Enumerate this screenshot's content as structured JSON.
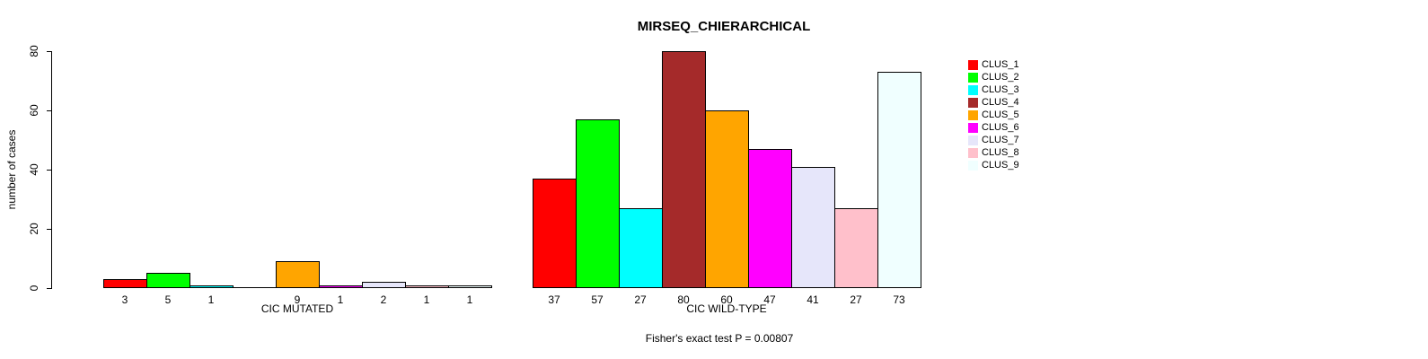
{
  "title": "MIRSEQ_CHIERARCHICAL",
  "annotation": "Fisher's exact test P = 0.00807",
  "y_axis": {
    "label": "number of cases"
  },
  "legend": {
    "items": [
      {
        "label": "CLUS_1",
        "color": "#FF0000"
      },
      {
        "label": "CLUS_2",
        "color": "#00FF00"
      },
      {
        "label": "CLUS_3",
        "color": "#00FFFF"
      },
      {
        "label": "CLUS_4",
        "color": "#A52A2A"
      },
      {
        "label": "CLUS_5",
        "color": "#FFA500"
      },
      {
        "label": "CLUS_6",
        "color": "#FF00FF"
      },
      {
        "label": "CLUS_7",
        "color": "#E6E6FA"
      },
      {
        "label": "CLUS_8",
        "color": "#FFC0CB"
      },
      {
        "label": "CLUS_9",
        "color": "#F0FFFF"
      }
    ]
  },
  "chart_data": {
    "type": "bar",
    "title": "MIRSEQ_CHIERARCHICAL",
    "ylabel": "number of cases",
    "ylim": [
      0,
      80
    ],
    "yticks": [
      0,
      20,
      40,
      60,
      80
    ],
    "grid": false,
    "legend_position": "right",
    "series_labels": [
      "CLUS_1",
      "CLUS_2",
      "CLUS_3",
      "CLUS_4",
      "CLUS_5",
      "CLUS_6",
      "CLUS_7",
      "CLUS_8",
      "CLUS_9"
    ],
    "series_colors": [
      "#FF0000",
      "#00FF00",
      "#00FFFF",
      "#A52A2A",
      "#FFA500",
      "#FF00FF",
      "#E6E6FA",
      "#FFC0CB",
      "#F0FFFF"
    ],
    "groups": [
      {
        "label": "CIC MUTATED",
        "values": [
          3,
          5,
          1,
          0,
          9,
          1,
          2,
          1,
          1
        ]
      },
      {
        "label": "CIC WILD-TYPE",
        "values": [
          37,
          57,
          27,
          80,
          60,
          47,
          41,
          27,
          73
        ]
      }
    ],
    "bar_value_labels_shown": true,
    "annotation": "Fisher's exact test P = 0.00807"
  }
}
